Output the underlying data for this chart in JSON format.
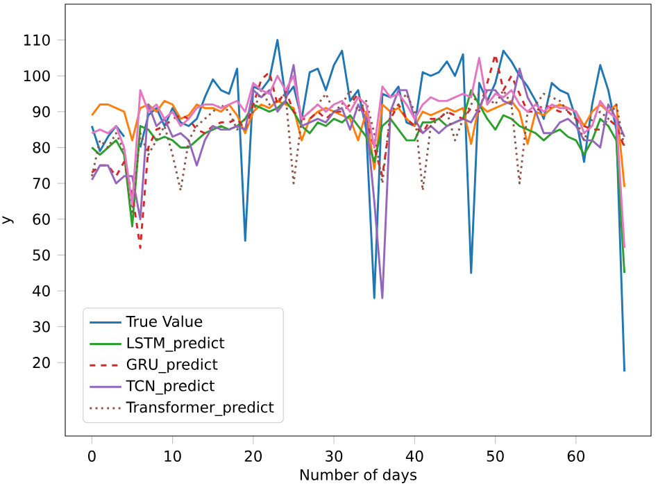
{
  "chart_data": {
    "type": "line",
    "xlabel": "Number of days",
    "ylabel": "y",
    "x": [
      0,
      1,
      2,
      3,
      4,
      5,
      6,
      7,
      8,
      9,
      10,
      11,
      12,
      13,
      14,
      15,
      16,
      17,
      18,
      19,
      20,
      21,
      22,
      23,
      24,
      25,
      26,
      27,
      28,
      29,
      30,
      31,
      32,
      33,
      34,
      35,
      36,
      37,
      38,
      39,
      40,
      41,
      42,
      43,
      44,
      45,
      46,
      47,
      48,
      49,
      50,
      51,
      52,
      53,
      54,
      55,
      56,
      57,
      58,
      59,
      60,
      61,
      62,
      63,
      64,
      65,
      66
    ],
    "xlim": [
      -3.3,
      69.3
    ],
    "ylim": [
      -0.5,
      120
    ],
    "xticks": [
      0,
      10,
      20,
      30,
      40,
      50,
      60
    ],
    "yticks": [
      20,
      30,
      40,
      50,
      60,
      70,
      80,
      90,
      100,
      110
    ],
    "legend": "bottom left",
    "grid": false,
    "marker": "none",
    "series": [
      {
        "name": "True Value",
        "color": "#1f77b4",
        "line_style": "solid",
        "values": [
          86,
          79,
          83,
          86,
          83,
          null,
          80,
          89,
          91,
          86,
          91,
          87,
          86,
          88,
          94,
          99,
          96,
          95,
          102,
          54,
          97,
          96,
          99,
          110,
          94,
          97,
          88,
          101,
          102,
          96,
          103,
          107,
          93,
          96,
          85,
          38,
          95,
          94,
          97,
          87,
          86,
          101,
          100,
          101,
          104,
          100,
          106,
          45,
          98,
          93,
          98,
          107,
          104,
          100,
          97,
          93,
          88,
          98,
          96,
          95,
          88,
          76,
          92,
          103,
          96,
          85,
          17.5
        ]
      },
      {
        "color": "#ff7f0e",
        "line_style": "solid",
        "values": [
          89,
          92,
          92,
          91,
          90,
          82,
          91,
          92,
          90,
          93,
          92,
          88,
          89,
          92,
          91,
          91,
          90,
          92,
          89,
          84,
          90,
          92,
          91,
          93,
          92,
          91,
          82,
          88,
          90,
          91,
          90,
          89,
          88,
          82,
          90,
          74,
          92,
          90,
          91,
          88,
          86,
          90,
          89,
          90,
          91,
          90,
          91,
          81,
          92,
          90,
          91,
          92,
          93,
          90,
          81,
          90,
          89,
          91,
          92,
          91,
          90,
          86,
          90,
          92,
          90,
          92,
          69
        ]
      },
      {
        "name": "LSTM_predict",
        "color": "#2ca02c",
        "line_style": "solid",
        "values": [
          80,
          78,
          80,
          82,
          78,
          58,
          86,
          85,
          82,
          83,
          82,
          80,
          80,
          82,
          84,
          85,
          86,
          85,
          86,
          88,
          92,
          91,
          90,
          91,
          93,
          90,
          86,
          84,
          87,
          86,
          88,
          87,
          89,
          86,
          83,
          76,
          86,
          88,
          85,
          82,
          82,
          87,
          87,
          88,
          86,
          87,
          88,
          96,
          92,
          88,
          85,
          89,
          88,
          86,
          85,
          84,
          82,
          84,
          85,
          83,
          82,
          78,
          82,
          88,
          86,
          82,
          45
        ]
      },
      {
        "name": "GRU_predict",
        "color": "#d62728",
        "line_style": "dashed",
        "values": [
          73,
          75,
          75,
          72,
          76,
          67,
          52,
          80,
          85,
          86,
          88,
          89,
          88,
          85,
          84,
          86,
          87,
          87,
          88,
          85,
          92,
          99,
          101,
          92,
          96,
          90,
          88,
          88,
          90,
          88,
          90,
          90,
          92,
          95,
          88,
          80,
          72,
          88,
          92,
          88,
          86,
          84,
          88,
          88,
          90,
          89,
          88,
          91,
          90,
          98,
          106,
          96,
          100,
          95,
          90,
          90,
          92,
          91,
          90,
          90,
          88,
          86,
          85,
          85,
          88,
          86,
          80
        ]
      },
      {
        "name": "TCN_predict",
        "color": "#9467bd",
        "line_style": "solid",
        "values": [
          71,
          75,
          75,
          70,
          72,
          72,
          60,
          92,
          86,
          88,
          83,
          84,
          82,
          75,
          82,
          86,
          85,
          85,
          86,
          85,
          96,
          94,
          96,
          90,
          93,
          103,
          86,
          87,
          88,
          87,
          90,
          91,
          85,
          92,
          88,
          65,
          38,
          90,
          96,
          96,
          88,
          84,
          86,
          84,
          86,
          87,
          88,
          87,
          91,
          96,
          96,
          93,
          92,
          102,
          94,
          90,
          84,
          84,
          87,
          88,
          86,
          82,
          82,
          80,
          92,
          88,
          83
        ]
      },
      {
        "name": "Transformer_predict",
        "color": "#8c564b",
        "line_style": "dotted",
        "values": [
          72,
          82,
          80,
          84,
          79,
          62,
          84,
          78,
          82,
          86,
          78,
          68,
          82,
          86,
          88,
          90,
          92,
          90,
          85,
          88,
          90,
          96,
          92,
          93,
          95,
          70,
          88,
          90,
          92,
          95,
          90,
          92,
          96,
          90,
          93,
          84,
          70,
          90,
          92,
          95,
          90,
          68,
          86,
          88,
          90,
          82,
          88,
          92,
          95,
          94,
          92,
          96,
          92,
          70,
          90,
          92,
          95,
          94,
          93,
          90,
          88,
          82,
          88,
          90,
          88,
          92,
          80
        ]
      },
      {
        "color": "#e377c2",
        "line_style": "solid",
        "values": [
          84,
          85,
          84,
          86,
          80,
          64,
          96,
          90,
          92,
          88,
          90,
          86,
          88,
          91,
          92,
          92,
          91,
          92,
          93,
          90,
          98,
          96,
          95,
          100,
          96,
          100,
          88,
          90,
          92,
          90,
          92,
          93,
          90,
          94,
          92,
          80,
          97,
          94,
          95,
          92,
          88,
          92,
          94,
          93,
          93,
          94,
          95,
          94,
          105,
          92,
          95,
          94,
          96,
          92,
          90,
          92,
          90,
          92,
          91,
          91,
          90,
          84,
          86,
          93,
          90,
          88,
          52
        ]
      }
    ]
  }
}
